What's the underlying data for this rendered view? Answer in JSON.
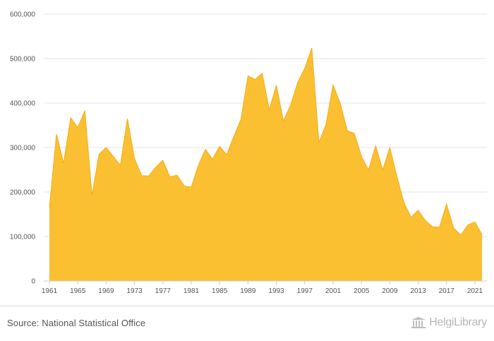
{
  "chart_data": {
    "type": "area",
    "title": "",
    "xlabel": "",
    "ylabel": "",
    "x": [
      1961,
      1962,
      1963,
      1964,
      1965,
      1966,
      1967,
      1968,
      1969,
      1970,
      1971,
      1972,
      1973,
      1974,
      1975,
      1976,
      1977,
      1978,
      1979,
      1980,
      1981,
      1982,
      1983,
      1984,
      1985,
      1986,
      1987,
      1988,
      1989,
      1990,
      1991,
      1992,
      1993,
      1994,
      1995,
      1996,
      1997,
      1998,
      1999,
      2000,
      2001,
      2002,
      2003,
      2004,
      2005,
      2006,
      2007,
      2008,
      2009,
      2010,
      2011,
      2012,
      2013,
      2014,
      2015,
      2016,
      2017,
      2018,
      2019,
      2020,
      2021,
      2022
    ],
    "values": [
      165000,
      330000,
      265000,
      367000,
      345000,
      383000,
      193000,
      285000,
      300000,
      280000,
      260000,
      365000,
      275000,
      237000,
      236000,
      256000,
      271000,
      234000,
      238000,
      214000,
      211000,
      260000,
      296000,
      274000,
      303000,
      284000,
      325000,
      363000,
      461000,
      453000,
      467000,
      385000,
      440000,
      360000,
      395000,
      446000,
      478000,
      524000,
      311000,
      352000,
      441000,
      400000,
      338000,
      332000,
      280000,
      250000,
      304000,
      250000,
      300000,
      235000,
      176000,
      143000,
      159000,
      136000,
      122000,
      121000,
      173000,
      119000,
      103000,
      126000,
      133000,
      104000
    ],
    "ylim": [
      0,
      600000
    ],
    "yticks": [
      0,
      100000,
      200000,
      300000,
      400000,
      500000,
      600000
    ],
    "ytick_labels": [
      "0",
      "100,000",
      "200,000",
      "300,000",
      "400,000",
      "500,000",
      "600,000"
    ],
    "xticks": [
      1961,
      1965,
      1969,
      1973,
      1977,
      1981,
      1985,
      1989,
      1993,
      1997,
      2001,
      2005,
      2009,
      2013,
      2017,
      2021
    ],
    "grid": true,
    "legend": "none",
    "colors": {
      "fill": "#fbbf32",
      "line": "#f5ad12",
      "grid": "#e6e6e6",
      "axis": "#cccccc",
      "tick_text": "#555555"
    }
  },
  "footer": {
    "source": "Source: National Statistical Office",
    "brand_icon": "library-building-icon",
    "brand_name": "HelgiLibrary"
  }
}
